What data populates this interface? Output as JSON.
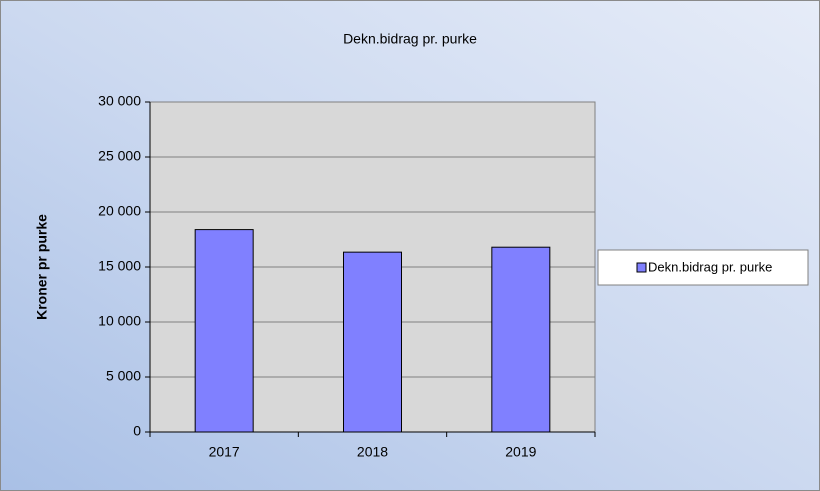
{
  "chart_data": {
    "type": "bar",
    "title": "Dekn.bidrag pr. purke",
    "y_label": "Kroner pr purke",
    "categories": [
      "2017",
      "2018",
      "2019"
    ],
    "series": [
      {
        "name": "Dekn.bidrag pr. purke",
        "color": "#8080ff",
        "values": [
          18400,
          16350,
          16800
        ]
      }
    ],
    "ylim": [
      0,
      30000
    ],
    "yticks": [
      0,
      {
        "value": 5000,
        "label": "5 000"
      },
      {
        "value": 10000,
        "label": "10 000"
      },
      {
        "value": 15000,
        "label": "15 000"
      },
      {
        "value": 20000,
        "label": "20 000"
      },
      {
        "value": 25000,
        "label": "25 000"
      },
      {
        "value": 30000,
        "label": "30 000"
      }
    ],
    "grid": true,
    "legend": "right"
  }
}
